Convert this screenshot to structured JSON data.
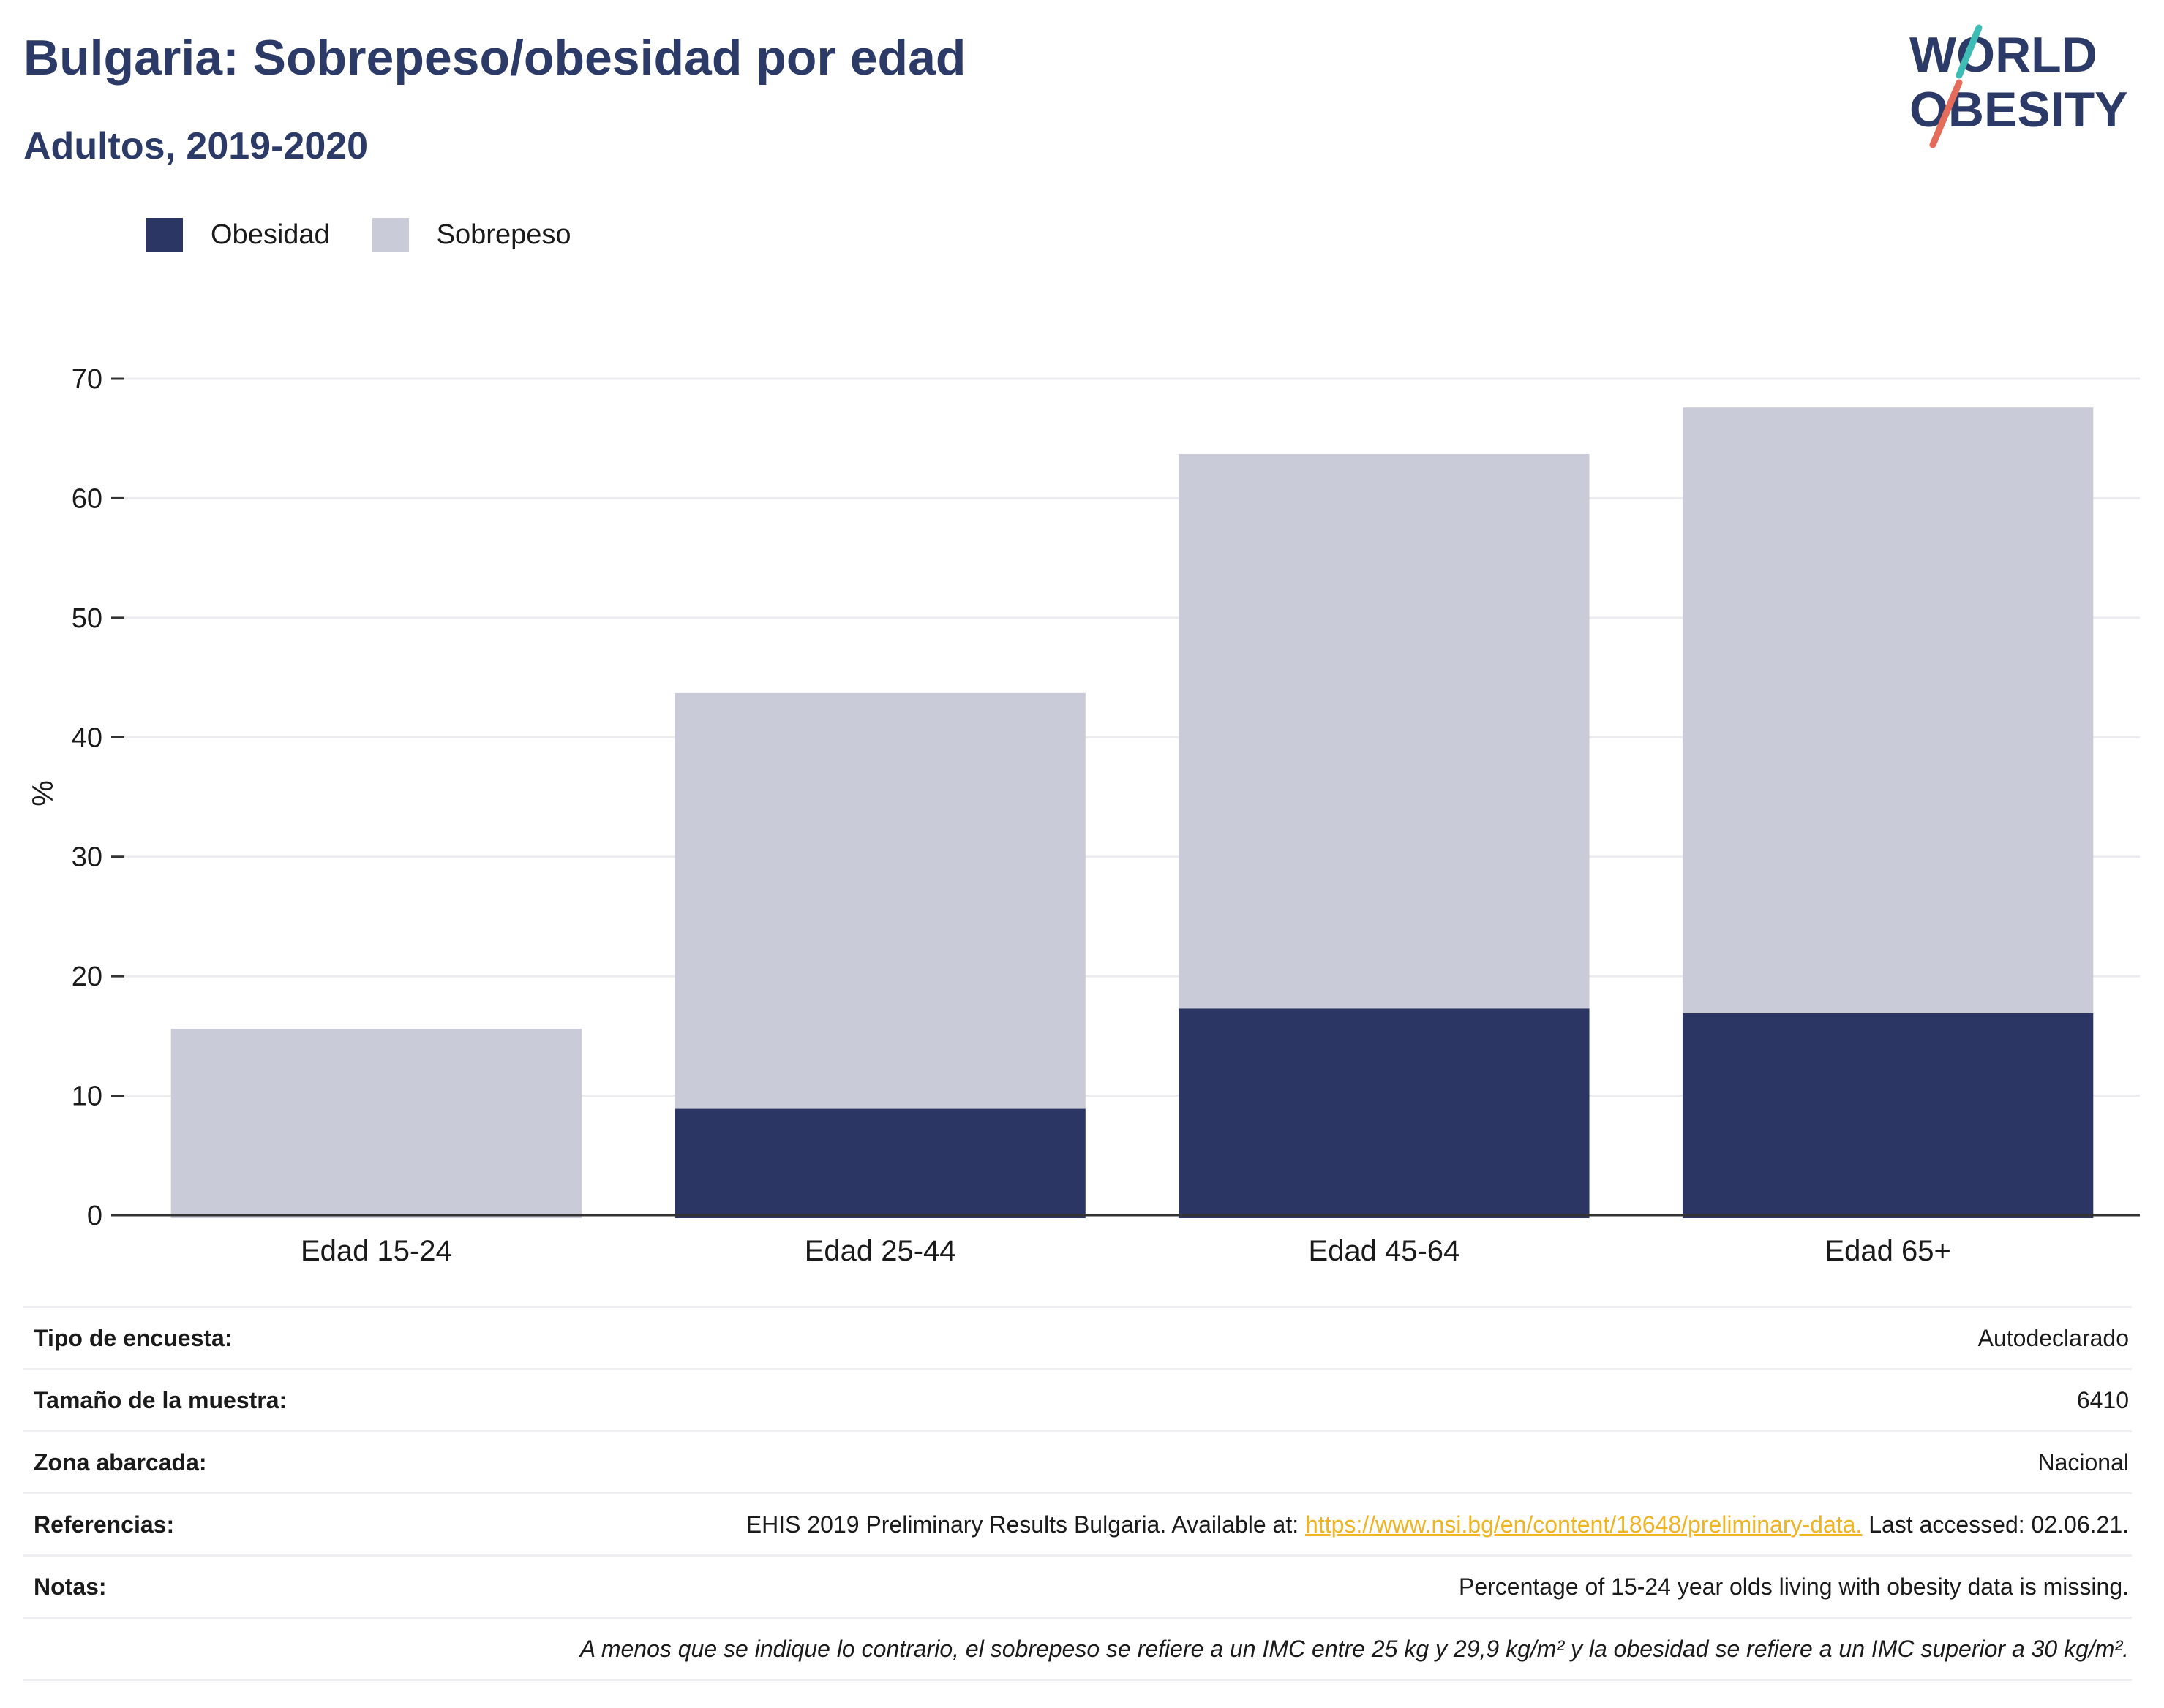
{
  "header": {
    "title": "Bulgaria: Sobrepeso/obesidad por edad",
    "subtitle": "Adultos, 2019-2020",
    "logo_line1": "WORLD",
    "logo_line2": "OBESITY"
  },
  "colors": {
    "obesity": "#2b3665",
    "overweight": "#c9ccd8",
    "title": "#2b3a67",
    "link": "#f0b323"
  },
  "chart_data": {
    "type": "bar",
    "stacked": true,
    "categories": [
      "Edad 15-24",
      "Edad 25-44",
      "Edad 45-64",
      "Edad 65+"
    ],
    "series": [
      {
        "name": "Obesidad",
        "values": [
          null,
          8.9,
          17.3,
          16.9
        ]
      },
      {
        "name": "Sobrepeso",
        "values": [
          15.6,
          34.8,
          46.4,
          50.7
        ]
      }
    ],
    "ylabel": "%",
    "ylim": [
      0,
      70
    ],
    "yticks": [
      0,
      10,
      20,
      30,
      40,
      50,
      60,
      70
    ],
    "grid": true,
    "legend": "top-left"
  },
  "info": {
    "survey_type": {
      "label": "Tipo de encuesta:",
      "value": "Autodeclarado"
    },
    "sample_size": {
      "label": "Tamaño de la muestra:",
      "value": "6410"
    },
    "area": {
      "label": "Zona abarcada:",
      "value": "Nacional"
    },
    "references": {
      "label": "Referencias:",
      "prefix": "EHIS 2019 Preliminary Results Bulgaria. Available at: ",
      "link": "https://www.nsi.bg/en/content/18648/preliminary-data.",
      "suffix": " Last accessed: 02.06.21."
    },
    "notes": {
      "label": "Notas:",
      "value": "Percentage of 15-24 year olds living with obesity data is missing."
    },
    "footnote": "A menos que se indique lo contrario, el sobrepeso se refiere a un IMC entre 25 kg y 29,9 kg/m² y la obesidad se refiere a un IMC superior a 30 kg/m²."
  }
}
